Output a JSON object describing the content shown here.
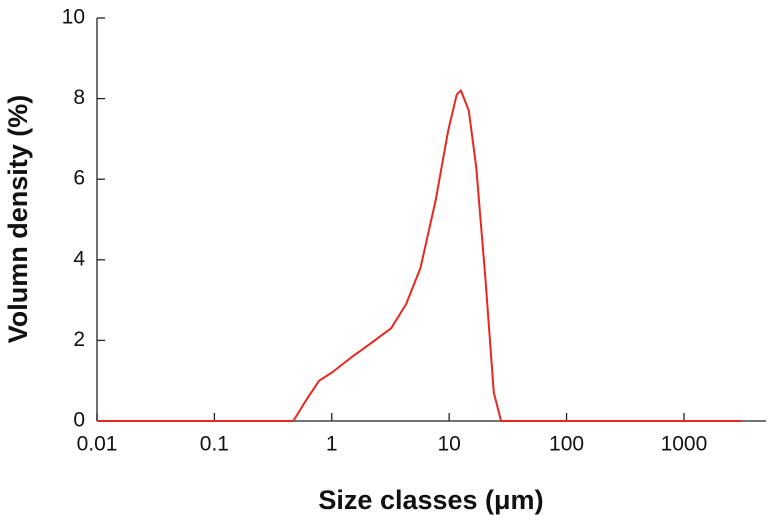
{
  "chart_data": {
    "type": "line",
    "xlabel": "Size classes (μm)",
    "ylabel": "Volumn density (%)",
    "xscale": "log",
    "xlim": [
      0.01,
      5000
    ],
    "ylim": [
      0,
      10
    ],
    "xticks": [
      0.01,
      0.1,
      1,
      10,
      100,
      1000
    ],
    "yticks": [
      0,
      2,
      4,
      6,
      8,
      10
    ],
    "x": [
      0.01,
      0.47,
      0.6,
      0.78,
      1,
      1.5,
      2.2,
      3.2,
      4.3,
      5.7,
      7.7,
      9.8,
      11.6,
      12.6,
      14.7,
      17,
      20.4,
      24,
      27.7,
      3100
    ],
    "values": [
      0,
      0,
      0.5,
      1.0,
      1.2,
      1.6,
      1.95,
      2.3,
      2.9,
      3.8,
      5.5,
      7.2,
      8.1,
      8.2,
      7.7,
      6.3,
      3.5,
      0.7,
      0,
      0
    ],
    "color": "#e8281e"
  }
}
